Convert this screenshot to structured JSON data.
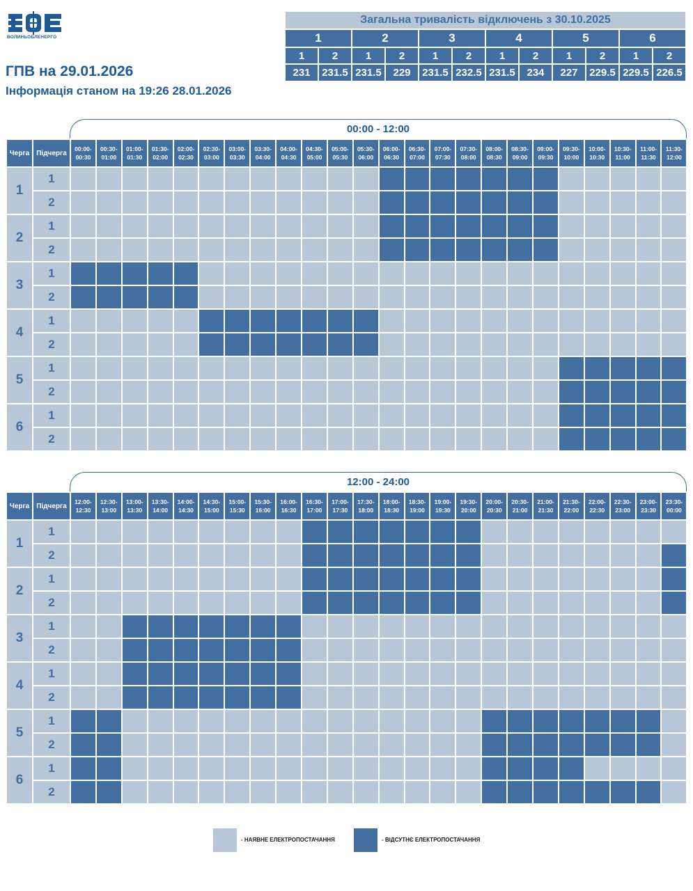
{
  "logo": {
    "caption": "ВОЛИНЬОБЛЕНЕРГО"
  },
  "header": {
    "title": "ГПВ на 29.01.2026",
    "subtitle": "Інформація станом на 19:26 28.01.2026"
  },
  "summary": {
    "heading": "Загальна тривалість відключень з 30.10.2025",
    "queues": [
      {
        "label": "1",
        "subs": [
          {
            "label": "1",
            "value": "231"
          },
          {
            "label": "2",
            "value": "231.5"
          }
        ]
      },
      {
        "label": "2",
        "subs": [
          {
            "label": "1",
            "value": "231.5"
          },
          {
            "label": "2",
            "value": "229"
          }
        ]
      },
      {
        "label": "3",
        "subs": [
          {
            "label": "1",
            "value": "231.5"
          },
          {
            "label": "2",
            "value": "232.5"
          }
        ]
      },
      {
        "label": "4",
        "subs": [
          {
            "label": "1",
            "value": "231.5"
          },
          {
            "label": "2",
            "value": "234"
          }
        ]
      },
      {
        "label": "5",
        "subs": [
          {
            "label": "1",
            "value": "227"
          },
          {
            "label": "2",
            "value": "229.5"
          }
        ]
      },
      {
        "label": "6",
        "subs": [
          {
            "label": "1",
            "value": "229.5"
          },
          {
            "label": "2",
            "value": "226.5"
          }
        ]
      }
    ]
  },
  "colors": {
    "available": "#b7c7d8",
    "outage": "#436ea0",
    "text": "#1d5a96"
  },
  "blocks": [
    {
      "range": "00:00 - 12:00",
      "col_queue": "Черга",
      "col_sub": "Підчерга",
      "slots": [
        [
          "00:00-",
          "00:30"
        ],
        [
          "00:30-",
          "01:00"
        ],
        [
          "01:00-",
          "01:30"
        ],
        [
          "01:30-",
          "02:00"
        ],
        [
          "02:00-",
          "02:30"
        ],
        [
          "02:30-",
          "03:00"
        ],
        [
          "03:00-",
          "03:30"
        ],
        [
          "03:30-",
          "04:00"
        ],
        [
          "04:00-",
          "04:30"
        ],
        [
          "04:30-",
          "05:00"
        ],
        [
          "05:00-",
          "05:30"
        ],
        [
          "05:30-",
          "06:00"
        ],
        [
          "06:00-",
          "06:30"
        ],
        [
          "06:30-",
          "07:00"
        ],
        [
          "07:00-",
          "07:30"
        ],
        [
          "07:30-",
          "08:00"
        ],
        [
          "08:00-",
          "08:30"
        ],
        [
          "08:30-",
          "09:00"
        ],
        [
          "09:00-",
          "09:30"
        ],
        [
          "09:30-",
          "10:00"
        ],
        [
          "10:00-",
          "10:30"
        ],
        [
          "10:30-",
          "11:00"
        ],
        [
          "11:00-",
          "11:30"
        ],
        [
          "11:30-",
          "12:00"
        ]
      ],
      "queues": [
        {
          "label": "1",
          "subs": [
            {
              "label": "1",
              "cells": "000000000000111111100000"
            },
            {
              "label": "2",
              "cells": "000000000000111111100000"
            }
          ]
        },
        {
          "label": "2",
          "subs": [
            {
              "label": "1",
              "cells": "000000000000111111100000"
            },
            {
              "label": "2",
              "cells": "000000000000111111100000"
            }
          ]
        },
        {
          "label": "3",
          "subs": [
            {
              "label": "1",
              "cells": "111110000000000000000000"
            },
            {
              "label": "2",
              "cells": "111110000000000000000000"
            }
          ]
        },
        {
          "label": "4",
          "subs": [
            {
              "label": "1",
              "cells": "000001111111000000000000"
            },
            {
              "label": "2",
              "cells": "000001111111000000000000"
            }
          ]
        },
        {
          "label": "5",
          "subs": [
            {
              "label": "1",
              "cells": "000000000000000000011111"
            },
            {
              "label": "2",
              "cells": "000000000000000000011111"
            }
          ]
        },
        {
          "label": "6",
          "subs": [
            {
              "label": "1",
              "cells": "000000000000000000011111"
            },
            {
              "label": "2",
              "cells": "000000000000000000011111"
            }
          ]
        }
      ]
    },
    {
      "range": "12:00 - 24:00",
      "col_queue": "Черга",
      "col_sub": "Підчерга",
      "slots": [
        [
          "12:00-",
          "12:30"
        ],
        [
          "12:30-",
          "13:00"
        ],
        [
          "13:00-",
          "13:30"
        ],
        [
          "13:30-",
          "14:00"
        ],
        [
          "14:00-",
          "14:30"
        ],
        [
          "14:30-",
          "15:00"
        ],
        [
          "15:00-",
          "15:30"
        ],
        [
          "15:30-",
          "16:00"
        ],
        [
          "16:00-",
          "16:30"
        ],
        [
          "16:30-",
          "17:00"
        ],
        [
          "17:00-",
          "17:30"
        ],
        [
          "17:30-",
          "18:00"
        ],
        [
          "18:00-",
          "18:30"
        ],
        [
          "18:30-",
          "19:00"
        ],
        [
          "19:00-",
          "19:30"
        ],
        [
          "19:30-",
          "20:00"
        ],
        [
          "20:00-",
          "20:30"
        ],
        [
          "20:30-",
          "21:00"
        ],
        [
          "21:00-",
          "21:30"
        ],
        [
          "21:30-",
          "22:00"
        ],
        [
          "22:00-",
          "22:30"
        ],
        [
          "22:30-",
          "23:00"
        ],
        [
          "23:00-",
          "23:30"
        ],
        [
          "23:30-",
          "00:00"
        ]
      ],
      "queues": [
        {
          "label": "1",
          "subs": [
            {
              "label": "1",
              "cells": "000000000111111100000000"
            },
            {
              "label": "2",
              "cells": "000000000111111100000001"
            }
          ]
        },
        {
          "label": "2",
          "subs": [
            {
              "label": "1",
              "cells": "000000000111111100000001"
            },
            {
              "label": "2",
              "cells": "000000000111111100000001"
            }
          ]
        },
        {
          "label": "3",
          "subs": [
            {
              "label": "1",
              "cells": "001111111000000000000000"
            },
            {
              "label": "2",
              "cells": "001111111000000000000000"
            }
          ]
        },
        {
          "label": "4",
          "subs": [
            {
              "label": "1",
              "cells": "001111111000000000000000"
            },
            {
              "label": "2",
              "cells": "001111111000000000000000"
            }
          ]
        },
        {
          "label": "5",
          "subs": [
            {
              "label": "1",
              "cells": "110000000000000011111110"
            },
            {
              "label": "2",
              "cells": "110000000000000011111110"
            }
          ]
        },
        {
          "label": "6",
          "subs": [
            {
              "label": "1",
              "cells": "110000000000000011110000"
            },
            {
              "label": "2",
              "cells": "110000000000000011111110"
            }
          ]
        }
      ]
    }
  ],
  "legend": {
    "available": "- НАЯВНЕ ЕЛЕКТРОПОСТАЧАННЯ",
    "outage": "- ВІДСУТНЄ ЕЛЕКТРОПОСТАЧАННЯ"
  }
}
